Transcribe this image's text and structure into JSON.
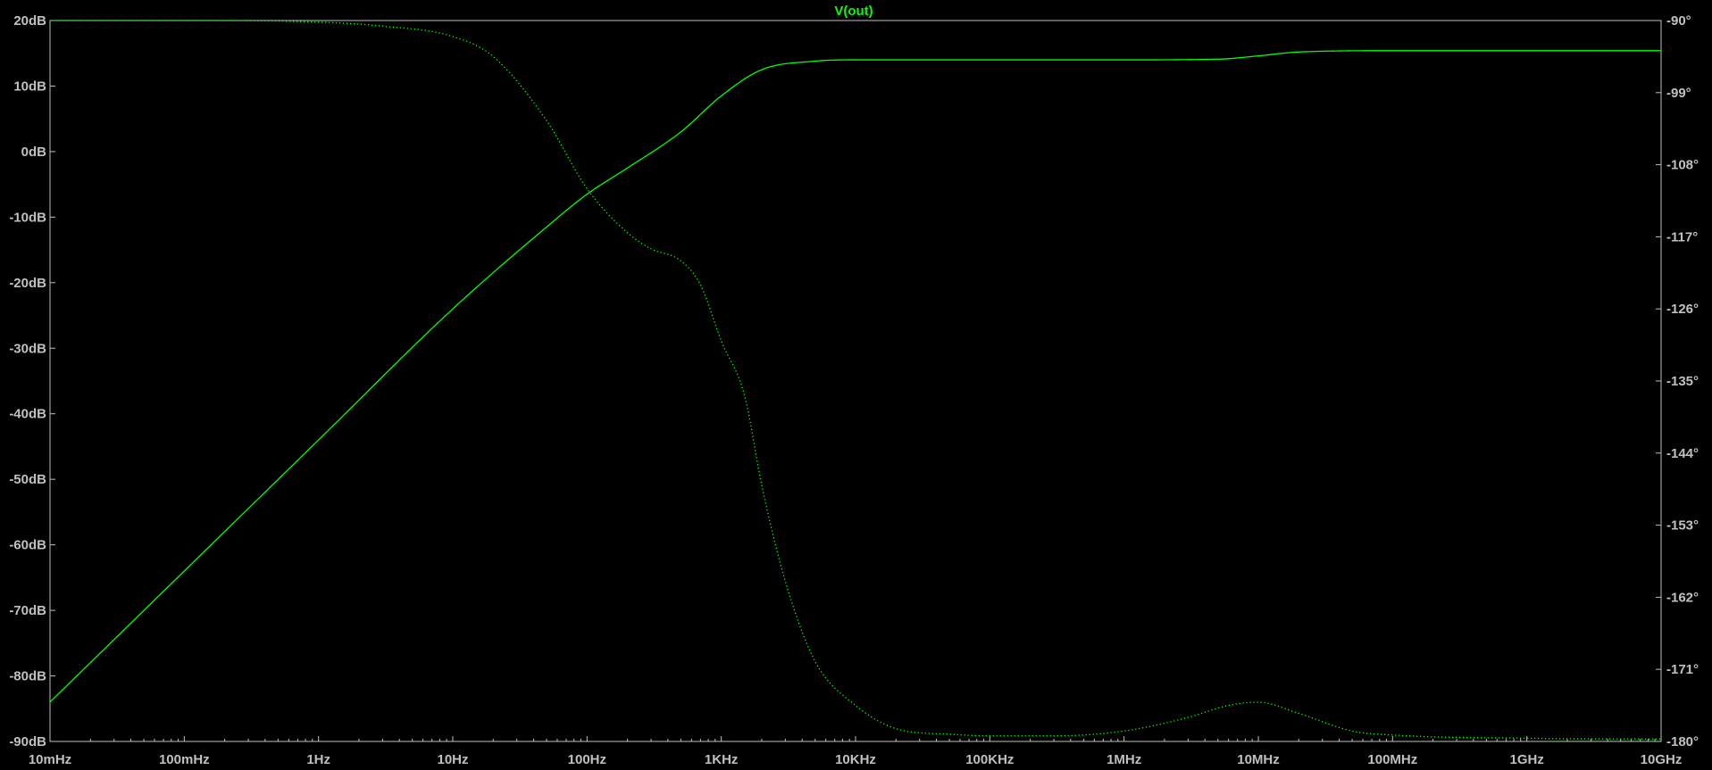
{
  "chart_data": {
    "type": "line",
    "title": "V(out)",
    "xlabel": "",
    "ylabel": "",
    "x_scale": "log",
    "xlim": [
      0.01,
      10000000000
    ],
    "ylim": [
      -90,
      20
    ],
    "y2lim": [
      -180,
      -90
    ],
    "grid": false,
    "x_ticks": [
      {
        "value": 0.01,
        "label": "10mHz"
      },
      {
        "value": 0.1,
        "label": "100mHz"
      },
      {
        "value": 1,
        "label": "1Hz"
      },
      {
        "value": 10,
        "label": "10Hz"
      },
      {
        "value": 100,
        "label": "100Hz"
      },
      {
        "value": 1000,
        "label": "1KHz"
      },
      {
        "value": 10000,
        "label": "10KHz"
      },
      {
        "value": 100000,
        "label": "100KHz"
      },
      {
        "value": 1000000,
        "label": "1MHz"
      },
      {
        "value": 10000000,
        "label": "10MHz"
      },
      {
        "value": 100000000,
        "label": "100MHz"
      },
      {
        "value": 1000000000,
        "label": "1GHz"
      },
      {
        "value": 10000000000,
        "label": "10GHz"
      }
    ],
    "y_ticks": [
      {
        "value": 20,
        "label": "20dB"
      },
      {
        "value": 10,
        "label": "10dB"
      },
      {
        "value": 0,
        "label": "0dB"
      },
      {
        "value": -10,
        "label": "-10dB"
      },
      {
        "value": -20,
        "label": "-20dB"
      },
      {
        "value": -30,
        "label": "-30dB"
      },
      {
        "value": -40,
        "label": "-40dB"
      },
      {
        "value": -50,
        "label": "-50dB"
      },
      {
        "value": -60,
        "label": "-60dB"
      },
      {
        "value": -70,
        "label": "-70dB"
      },
      {
        "value": -80,
        "label": "-80dB"
      },
      {
        "value": -90,
        "label": "-90dB"
      }
    ],
    "y2_ticks": [
      {
        "value": -90,
        "label": "-90°"
      },
      {
        "value": -99,
        "label": "-99°"
      },
      {
        "value": -108,
        "label": "-108°"
      },
      {
        "value": -117,
        "label": "-117°"
      },
      {
        "value": -126,
        "label": "-126°"
      },
      {
        "value": -135,
        "label": "-135°"
      },
      {
        "value": -144,
        "label": "-144°"
      },
      {
        "value": -153,
        "label": "-153°"
      },
      {
        "value": -162,
        "label": "-162°"
      },
      {
        "value": -171,
        "label": "-171°"
      },
      {
        "value": -180,
        "label": "-180°"
      }
    ],
    "series": [
      {
        "style": "solid",
        "axis": "left",
        "x": [
          0.01,
          0.1,
          1,
          10,
          50,
          100,
          200,
          500,
          1000,
          2000,
          5000,
          10000,
          100000,
          1000000,
          5000000,
          10000000,
          20000000,
          100000000,
          1000000000,
          10000000000
        ],
        "y": [
          -84,
          -64,
          -44,
          -24,
          -11.5,
          -6.5,
          -2.5,
          3,
          8.5,
          12.5,
          13.8,
          14,
          14,
          14,
          14.1,
          14.6,
          15.2,
          15.4,
          15.4,
          15.4
        ]
      },
      {
        "style": "dotted",
        "axis": "right",
        "x": [
          0.01,
          0.1,
          1,
          3,
          10,
          20,
          50,
          100,
          200,
          300,
          500,
          700,
          1000,
          1500,
          2000,
          3000,
          5000,
          10000,
          20000,
          50000,
          100000,
          300000,
          1000000,
          3000000,
          6000000,
          10000000,
          20000000,
          50000000,
          100000000,
          1000000000,
          10000000000
        ],
        "y": [
          -90,
          -90,
          -90.2,
          -90.7,
          -92,
          -94.5,
          -102.5,
          -111,
          -116.5,
          -118.5,
          -120,
          -123,
          -130,
          -137,
          -148,
          -160,
          -170,
          -175.5,
          -178.4,
          -179.1,
          -179.3,
          -179.3,
          -178.7,
          -177,
          -175.5,
          -175.1,
          -176.5,
          -178.7,
          -179.2,
          -179.6,
          -179.7
        ]
      }
    ],
    "colors": {
      "trace": "#00ff00",
      "axis": "#c0c0c0",
      "background": "#000000",
      "title": "#00ff00"
    }
  }
}
